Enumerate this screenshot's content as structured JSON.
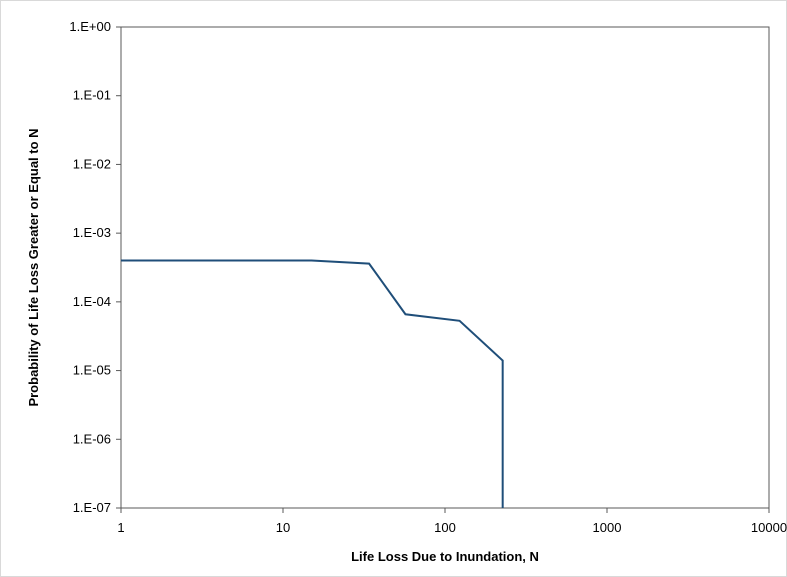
{
  "chart_data": {
    "type": "line",
    "title": "",
    "xlabel": "Life Loss Due to Inundation, N",
    "ylabel": "Probability of Life Loss Greater or Equal to N",
    "x_scale": "log",
    "y_scale": "log",
    "xlim": [
      1,
      10000
    ],
    "ylim": [
      1e-07,
      1
    ],
    "x_ticks": [
      1,
      10,
      100,
      1000,
      10000
    ],
    "x_tick_labels": [
      "1",
      "10",
      "100",
      "1000",
      "10000"
    ],
    "y_ticks": [
      1,
      0.1,
      0.01,
      0.001,
      0.0001,
      1e-05,
      1e-06,
      1e-07
    ],
    "y_tick_labels": [
      "1.E+00",
      "1.E-01",
      "1.E-02",
      "1.E-03",
      "1.E-04",
      "1.E-05",
      "1.E-06",
      "1.E-07"
    ],
    "grid": false,
    "legend": "none",
    "series": [
      {
        "color": "#1f4e79",
        "x": [
          1,
          15,
          34,
          57,
          123,
          227,
          227
        ],
        "y": [
          0.0004,
          0.0004,
          0.00036,
          6.6e-05,
          5.3e-05,
          1.4e-05,
          1e-07
        ]
      }
    ]
  }
}
